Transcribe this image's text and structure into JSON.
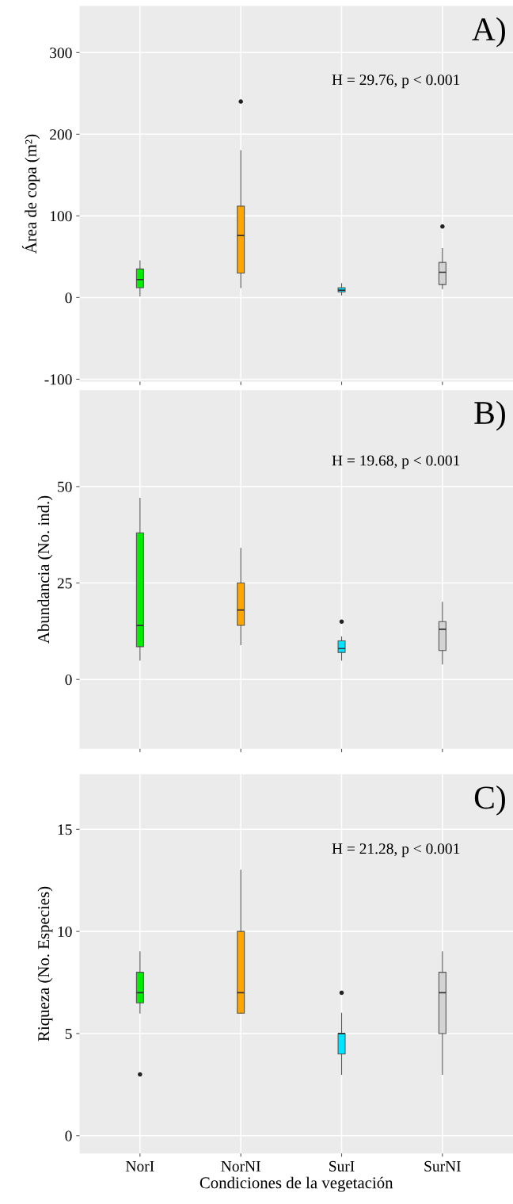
{
  "chart_data": [
    {
      "type": "box",
      "categories": [
        null,
        null,
        null,
        null
      ],
      "ylabel": "Área de copa (m²)",
      "ylim": [
        -103,
        357
      ],
      "yticks": [
        -100,
        0,
        100,
        200,
        300
      ],
      "grid": true,
      "tick_labels": "y",
      "colors": [
        "#00ee00",
        "#ffa500",
        "#00e5ff",
        "#d3d3d3"
      ],
      "boxes": [
        {
          "low": 2,
          "q1": 12,
          "median": 22,
          "q3": 35,
          "high": 45
        },
        {
          "low": 12,
          "q1": 30,
          "median": 76,
          "q3": 112,
          "high": 180,
          "outliers": [
            240
          ]
        },
        {
          "low": 3,
          "q1": 7,
          "median": 9,
          "q3": 12,
          "high": 17
        },
        {
          "low": 11,
          "q1": 16,
          "median": 31,
          "q3": 43,
          "high": 60,
          "outliers": [
            87
          ]
        }
      ],
      "annotations": [
        "A)",
        "H = 29.76, p < 0.001"
      ]
    },
    {
      "type": "box",
      "categories": [
        null,
        null,
        null,
        null
      ],
      "ylabel": "Abundancia (No. ind.)",
      "ylim": [
        -18,
        75
      ],
      "yticks": [
        0,
        25,
        50
      ],
      "grid": true,
      "tick_labels": "y",
      "colors": [
        "#00ee00",
        "#ffa500",
        "#00e5ff",
        "#d3d3d3"
      ],
      "boxes": [
        {
          "low": 5,
          "q1": 8.5,
          "median": 14,
          "q3": 38,
          "high": 47
        },
        {
          "low": 9,
          "q1": 14,
          "median": 18,
          "q3": 25,
          "high": 34
        },
        {
          "low": 5,
          "q1": 7,
          "median": 8,
          "q3": 10,
          "high": 11,
          "outliers": [
            15
          ]
        },
        {
          "low": 4,
          "q1": 7.5,
          "median": 13,
          "q3": 15,
          "high": 20
        }
      ],
      "annotations": [
        "B)",
        "H = 19.68, p < 0.001"
      ]
    },
    {
      "type": "box",
      "categories": [
        "NorI",
        "NorNI",
        "SurI",
        "SurNI"
      ],
      "xlabel": "Condiciones de la vegetación",
      "ylabel": "Riqueza (No. Especies)",
      "ylim": [
        -0.87,
        17.7
      ],
      "yticks": [
        0,
        5,
        10,
        15
      ],
      "grid": true,
      "colors": [
        "#00ee00",
        "#ffa500",
        "#00e5ff",
        "#d3d3d3"
      ],
      "boxes": [
        {
          "low": 6,
          "q1": 6.5,
          "median": 7,
          "q3": 8,
          "high": 9,
          "outliers": [
            3
          ]
        },
        {
          "low": 6,
          "q1": 6,
          "median": 7,
          "q3": 10,
          "high": 13
        },
        {
          "low": 3,
          "q1": 4,
          "median": 5,
          "q3": 5,
          "high": 6,
          "outliers": [
            7
          ]
        },
        {
          "low": 3,
          "q1": 5,
          "median": 7,
          "q3": 8,
          "high": 9
        }
      ],
      "annotations": [
        "C)",
        "H = 21.28, p < 0.001"
      ]
    }
  ]
}
